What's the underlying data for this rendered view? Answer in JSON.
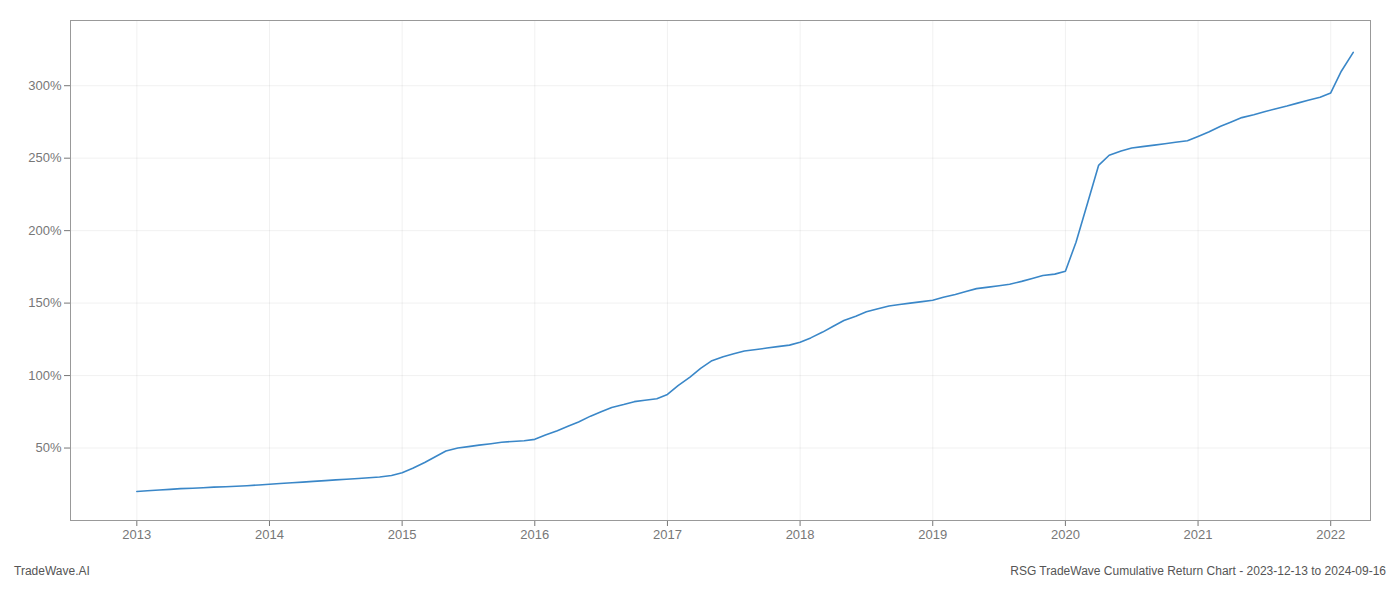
{
  "chart_data": {
    "type": "line",
    "title": "RSG TradeWave Cumulative Return Chart - 2023-12-13 to 2024-09-16",
    "annotations": [
      "TradeWave.AI"
    ],
    "color": "#3a87c8",
    "grid": true,
    "xlim": [
      2012.5,
      2022.3
    ],
    "xticks": [
      2013,
      2014,
      2015,
      2016,
      2017,
      2018,
      2019,
      2020,
      2021,
      2022
    ],
    "ylim": [
      0,
      345
    ],
    "yticks": [
      {
        "value": 50,
        "label": "50%"
      },
      {
        "value": 100,
        "label": "100%"
      },
      {
        "value": 150,
        "label": "150%"
      },
      {
        "value": 200,
        "label": "200%"
      },
      {
        "value": 250,
        "label": "250%"
      },
      {
        "value": 300,
        "label": "300%"
      }
    ],
    "x": [
      2013.0,
      2013.08,
      2013.17,
      2013.25,
      2013.33,
      2013.42,
      2013.5,
      2013.58,
      2013.67,
      2013.75,
      2013.83,
      2013.92,
      2014.0,
      2014.08,
      2014.17,
      2014.25,
      2014.33,
      2014.42,
      2014.5,
      2014.58,
      2014.67,
      2014.75,
      2014.83,
      2014.92,
      2015.0,
      2015.08,
      2015.17,
      2015.25,
      2015.33,
      2015.42,
      2015.5,
      2015.58,
      2015.67,
      2015.75,
      2015.83,
      2015.92,
      2016.0,
      2016.08,
      2016.17,
      2016.25,
      2016.33,
      2016.42,
      2016.5,
      2016.58,
      2016.67,
      2016.75,
      2016.83,
      2016.92,
      2017.0,
      2017.08,
      2017.17,
      2017.25,
      2017.33,
      2017.42,
      2017.5,
      2017.58,
      2017.67,
      2017.75,
      2017.83,
      2017.92,
      2018.0,
      2018.08,
      2018.17,
      2018.25,
      2018.33,
      2018.42,
      2018.5,
      2018.58,
      2018.67,
      2018.75,
      2018.83,
      2018.92,
      2019.0,
      2019.08,
      2019.17,
      2019.25,
      2019.33,
      2019.42,
      2019.5,
      2019.58,
      2019.67,
      2019.75,
      2019.83,
      2019.92,
      2020.0,
      2020.08,
      2020.17,
      2020.25,
      2020.33,
      2020.42,
      2020.5,
      2020.58,
      2020.67,
      2020.75,
      2020.83,
      2020.92,
      2021.0,
      2021.08,
      2021.17,
      2021.25,
      2021.33,
      2021.42,
      2021.5,
      2021.58,
      2021.67,
      2021.75,
      2021.83,
      2021.92,
      2022.0,
      2022.08,
      2022.17
    ],
    "values": [
      20,
      20.5,
      21,
      21.5,
      22,
      22.3,
      22.6,
      23,
      23.3,
      23.6,
      24,
      24.5,
      25,
      25.5,
      26,
      26.5,
      27,
      27.5,
      28,
      28.5,
      29,
      29.5,
      30,
      31,
      33,
      36,
      40,
      44,
      48,
      50,
      51,
      52,
      53,
      54,
      54.5,
      55,
      56,
      59,
      62,
      65,
      68,
      72,
      75,
      78,
      80,
      82,
      83,
      84,
      87,
      93,
      99,
      105,
      110,
      113,
      115,
      117,
      118,
      119,
      120,
      121,
      123,
      126,
      130,
      134,
      138,
      141,
      144,
      146,
      148,
      149,
      150,
      151,
      152,
      154,
      156,
      158,
      160,
      161,
      162,
      163,
      165,
      167,
      169,
      170,
      172,
      192,
      220,
      245,
      252,
      255,
      257,
      258,
      259,
      260,
      261,
      262,
      265,
      268,
      272,
      275,
      278,
      280,
      282,
      284,
      286,
      288,
      290,
      292,
      295,
      310,
      323
    ]
  }
}
